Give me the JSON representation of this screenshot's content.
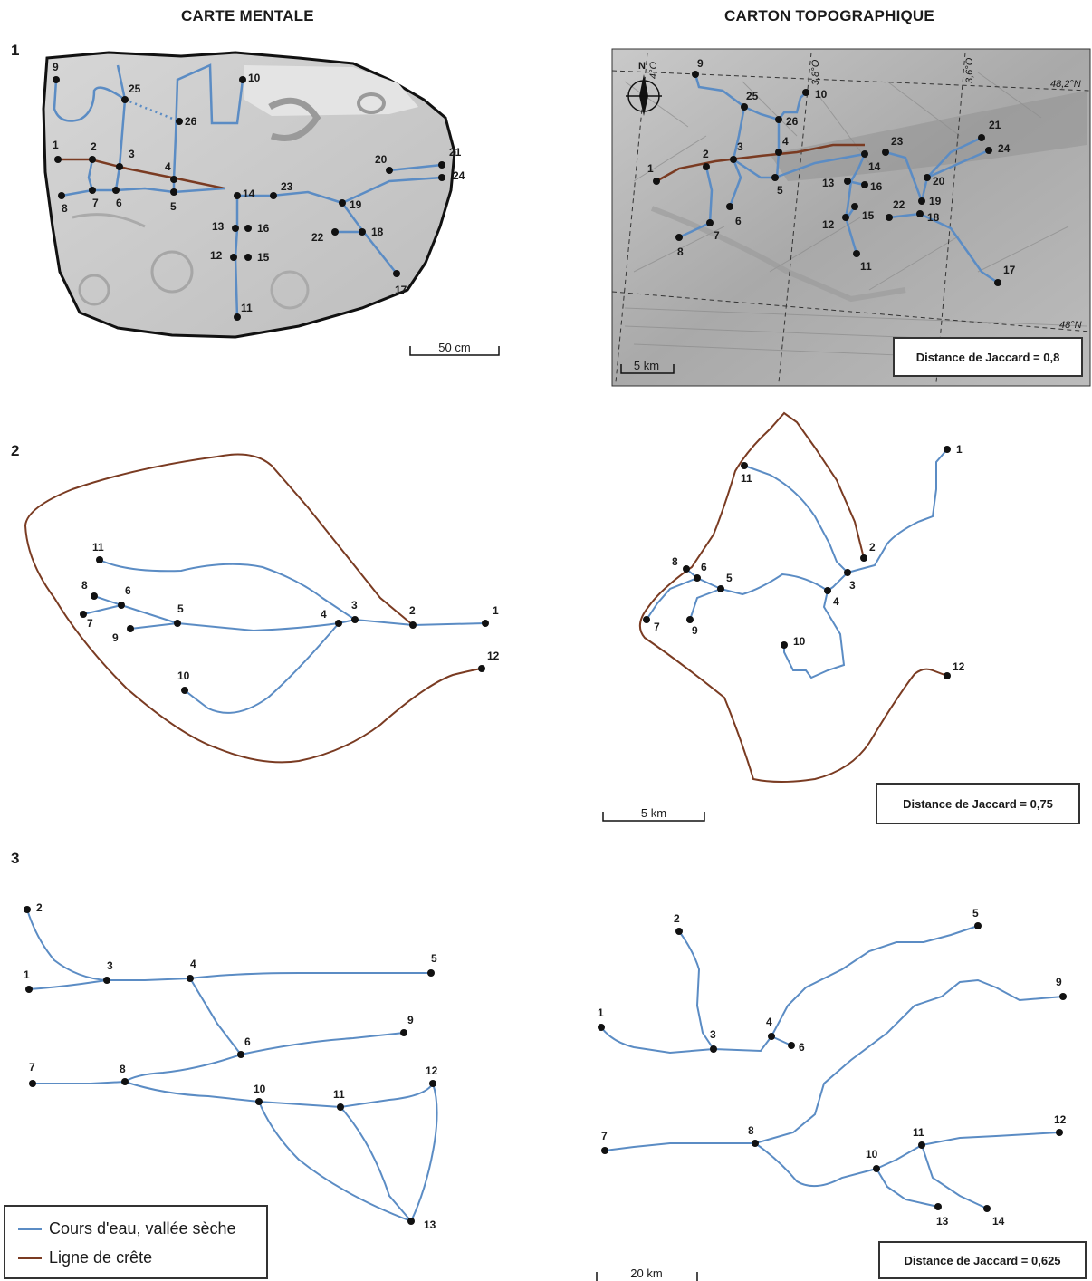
{
  "headers": {
    "left": "CARTE MENTALE",
    "right": "CARTON TOPOGRAPHIQUE"
  },
  "sections": [
    "1",
    "2",
    "3"
  ],
  "colors": {
    "stream": "#5b8cc4",
    "ridge": "#7a3b22"
  },
  "panel1": {
    "scale_left": "50 cm",
    "scale_right": "5 km",
    "jaccard": "Distance de Jaccard = 0,8",
    "coords": [
      "4°O",
      "3,8°O",
      "3,6°O",
      "48,2°N",
      "48°N"
    ],
    "north": "N"
  },
  "panel2": {
    "scale": "5 km",
    "jaccard": "Distance de Jaccard = 0,75"
  },
  "panel3": {
    "scale": "20 km",
    "jaccard": "Distance de Jaccard = 0,625"
  },
  "legend": {
    "stream_label": "Cours d'eau, vallée sèche",
    "ridge_label": "Ligne de crête"
  }
}
